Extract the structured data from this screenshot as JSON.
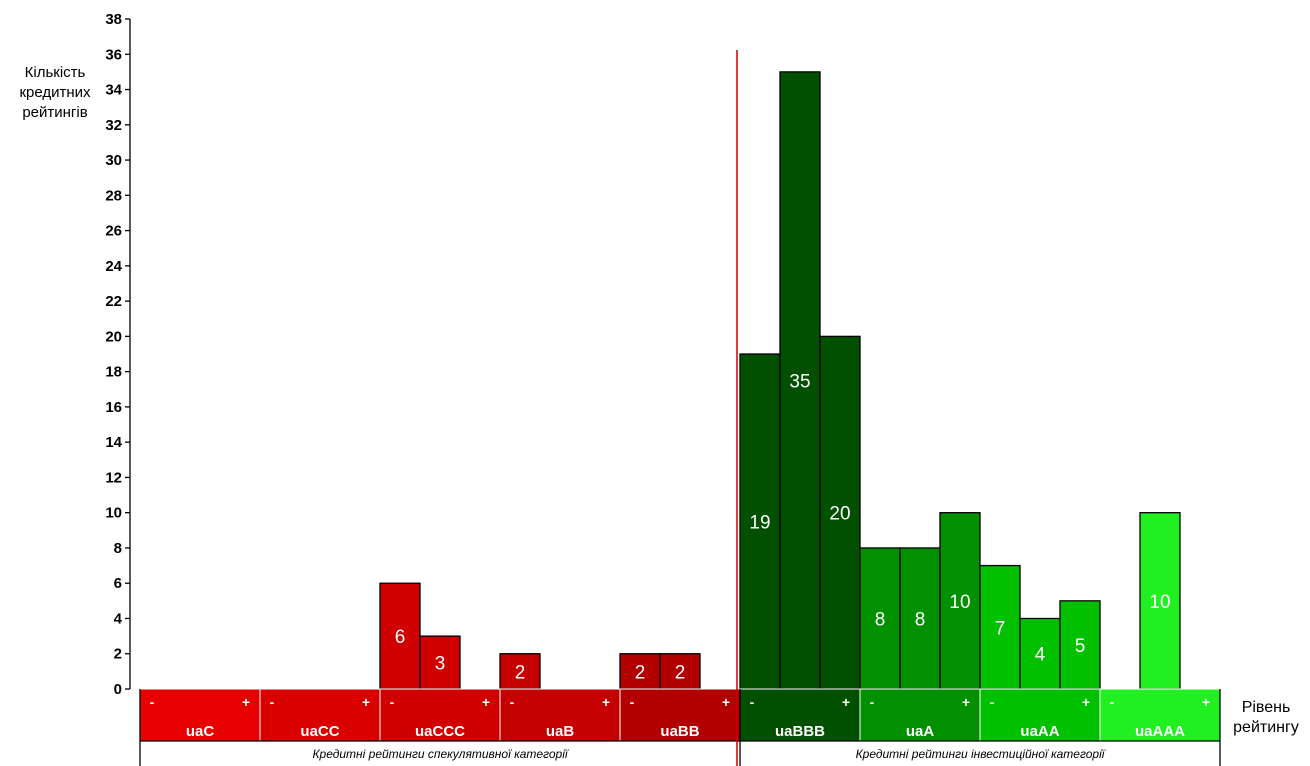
{
  "chart_data": {
    "type": "bar",
    "title": "",
    "ylabel": [
      "Кількість",
      "кредитних",
      "рейтингів"
    ],
    "xlabel": [
      "Рівень",
      "рейтингу"
    ],
    "ylim": [
      0,
      38
    ],
    "yticks": [
      0,
      2,
      4,
      6,
      8,
      10,
      12,
      14,
      16,
      18,
      20,
      22,
      24,
      26,
      28,
      30,
      32,
      34,
      36,
      38
    ],
    "grid": false,
    "categories": [
      "uaC-",
      "uaC",
      "uaC+",
      "uaCC-",
      "uaCC",
      "uaCC+",
      "uaCCC-",
      "uaCCC",
      "uaCCC+",
      "uaB-",
      "uaB",
      "uaB+",
      "uaBB-",
      "uaBB",
      "uaBB+",
      "uaBBB-",
      "uaBBB",
      "uaBBB+",
      "uaA-",
      "uaA",
      "uaA+",
      "uaAA-",
      "uaAA",
      "uaAA+",
      "uaAAA-",
      "uaAAA",
      "uaAAA+"
    ],
    "values": [
      0,
      0,
      0,
      0,
      0,
      0,
      6,
      3,
      0,
      2,
      0,
      0,
      2,
      2,
      0,
      19,
      35,
      20,
      8,
      8,
      10,
      7,
      4,
      5,
      0,
      10,
      0
    ],
    "bands": [
      {
        "name": "uaC",
        "minus": "-",
        "plus": "+",
        "color": "#e60000"
      },
      {
        "name": "uaCC",
        "minus": "-",
        "plus": "+",
        "color": "#d90000"
      },
      {
        "name": "uaCCC",
        "minus": "-",
        "plus": "+",
        "color": "#d00000"
      },
      {
        "name": "uaB",
        "minus": "-",
        "plus": "+",
        "color": "#c40000"
      },
      {
        "name": "uaBB",
        "minus": "-",
        "plus": "+",
        "color": "#b20000"
      },
      {
        "name": "uaBBB",
        "minus": "-",
        "plus": "+",
        "color": "#005000"
      },
      {
        "name": "uaA",
        "minus": "-",
        "plus": "+",
        "color": "#009000"
      },
      {
        "name": "uaAA",
        "minus": "-",
        "plus": "+",
        "color": "#00c000"
      },
      {
        "name": "uaAAA",
        "minus": "-",
        "plus": "+",
        "color": "#20f020"
      }
    ],
    "categories_groups": [
      {
        "label": "Кредитні рейтинги спекулятивної категорії",
        "bands": 5
      },
      {
        "label": "Кредитні рейтинги інвестиційної категорії",
        "bands": 4
      }
    ],
    "divider_color": "#cc0000"
  }
}
